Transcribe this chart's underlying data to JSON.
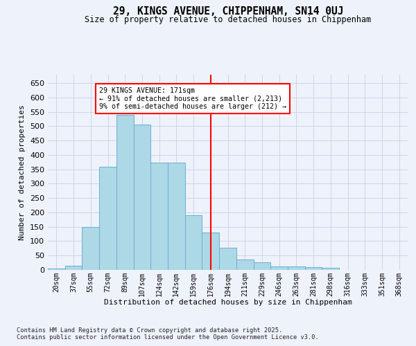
{
  "title1": "29, KINGS AVENUE, CHIPPENHAM, SN14 0UJ",
  "title2": "Size of property relative to detached houses in Chippenham",
  "xlabel": "Distribution of detached houses by size in Chippenham",
  "ylabel": "Number of detached properties",
  "footnote": "Contains HM Land Registry data © Crown copyright and database right 2025.\nContains public sector information licensed under the Open Government Licence v3.0.",
  "bin_labels": [
    "20sqm",
    "37sqm",
    "55sqm",
    "72sqm",
    "89sqm",
    "107sqm",
    "124sqm",
    "142sqm",
    "159sqm",
    "176sqm",
    "194sqm",
    "211sqm",
    "229sqm",
    "246sqm",
    "263sqm",
    "281sqm",
    "298sqm",
    "316sqm",
    "333sqm",
    "351sqm",
    "368sqm"
  ],
  "bar_values": [
    5,
    15,
    150,
    358,
    540,
    505,
    373,
    373,
    190,
    130,
    78,
    37,
    27,
    12,
    12,
    10,
    8,
    0,
    0,
    0,
    0
  ],
  "bar_color": "#add8e6",
  "bar_edge_color": "#6baed6",
  "vline_x_index": 9,
  "vline_label": "29 KINGS AVENUE: 171sqm",
  "annotation_line1": "← 91% of detached houses are smaller (2,213)",
  "annotation_line2": "9% of semi-detached houses are larger (212) →",
  "ylim": [
    0,
    680
  ],
  "yticks": [
    0,
    50,
    100,
    150,
    200,
    250,
    300,
    350,
    400,
    450,
    500,
    550,
    600,
    650
  ],
  "bg_color": "#eef2fb",
  "grid_color": "#c8d0e8"
}
